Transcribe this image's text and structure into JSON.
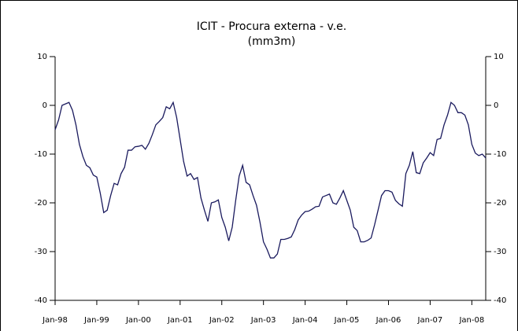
{
  "chart_data": {
    "type": "line",
    "title": "ICIT - Procura externa - v.e.",
    "subtitle": "(mm3m)",
    "categories": [
      "Jan-98",
      null,
      null,
      null,
      null,
      null,
      null,
      null,
      null,
      null,
      null,
      null,
      "Jan-99",
      null,
      null,
      null,
      null,
      null,
      null,
      null,
      null,
      null,
      null,
      null,
      "Jan-00",
      null,
      null,
      null,
      null,
      null,
      null,
      null,
      null,
      null,
      null,
      null,
      "Jan-01",
      null,
      null,
      null,
      null,
      null,
      null,
      null,
      null,
      null,
      null,
      null,
      "Jan-02",
      null,
      null,
      null,
      null,
      null,
      null,
      null,
      null,
      null,
      null,
      null,
      "Jan-03",
      null,
      null,
      null,
      null,
      null,
      null,
      null,
      null,
      null,
      null,
      null,
      "Jan-04",
      null,
      null,
      null,
      null,
      null,
      null,
      null,
      null,
      null,
      null,
      null,
      "Jan-05",
      null,
      null,
      null,
      null,
      null,
      null,
      null,
      null,
      null,
      null,
      null,
      "Jan-06",
      null,
      null,
      null,
      null,
      null,
      null,
      null,
      null,
      null,
      null,
      null,
      "Jan-07",
      null,
      null,
      null,
      null,
      null,
      null,
      null,
      null,
      null,
      null,
      null,
      "Jan-08",
      null,
      null,
      null,
      null
    ],
    "values": [
      -5,
      -3,
      0,
      0.3,
      0.6,
      -1,
      -4,
      -8,
      -10.5,
      -12.3,
      -12.8,
      -14.3,
      -14.7,
      -18,
      -22,
      -21.5,
      -18.5,
      -16,
      -16.3,
      -14,
      -12.7,
      -9.2,
      -9.2,
      -8.5,
      -8.4,
      -8.2,
      -9,
      -7.8,
      -6,
      -4,
      -3.3,
      -2.5,
      -0.3,
      -0.7,
      0.6,
      -2.5,
      -7,
      -11.5,
      -14.5,
      -14,
      -15.2,
      -14.8,
      -19,
      -21.5,
      -23.8,
      -20,
      -19.8,
      -19.4,
      -23,
      -25,
      -27.8,
      -25,
      -19.5,
      -14.5,
      -12.3,
      -15.8,
      -16.3,
      -18.5,
      -20.5,
      -24,
      -28,
      -29.5,
      -31.3,
      -31.3,
      -30.5,
      -27.5,
      -27.5,
      -27.3,
      -27,
      -25.5,
      -23.5,
      -22.5,
      -21.8,
      -21.7,
      -21.3,
      -20.8,
      -20.7,
      -18.8,
      -18.5,
      -18.2,
      -20,
      -20.3,
      -19,
      -17.5,
      -19.5,
      -21.5,
      -25,
      -25.7,
      -28,
      -28,
      -27.7,
      -27.2,
      -24.5,
      -21.5,
      -18.5,
      -17.5,
      -17.5,
      -17.8,
      -19.5,
      -20.2,
      -20.7,
      -14,
      -12.3,
      -9.5,
      -13.8,
      -14,
      -11.8,
      -10.8,
      -9.7,
      -10.3,
      -7,
      -6.8,
      -4,
      -2,
      0.6,
      0,
      -1.5,
      -1.5,
      -2,
      -4,
      -8,
      -9.8,
      -10.3,
      -10,
      -10.8
    ],
    "color": "#1a1a5e",
    "ylim": [
      -40,
      10
    ],
    "yticks": [
      -40,
      -30,
      -20,
      -10,
      0,
      10
    ],
    "y2lim": [
      -40,
      10
    ],
    "y2ticks": [
      -40,
      -30,
      -20,
      -10,
      0,
      10
    ]
  }
}
